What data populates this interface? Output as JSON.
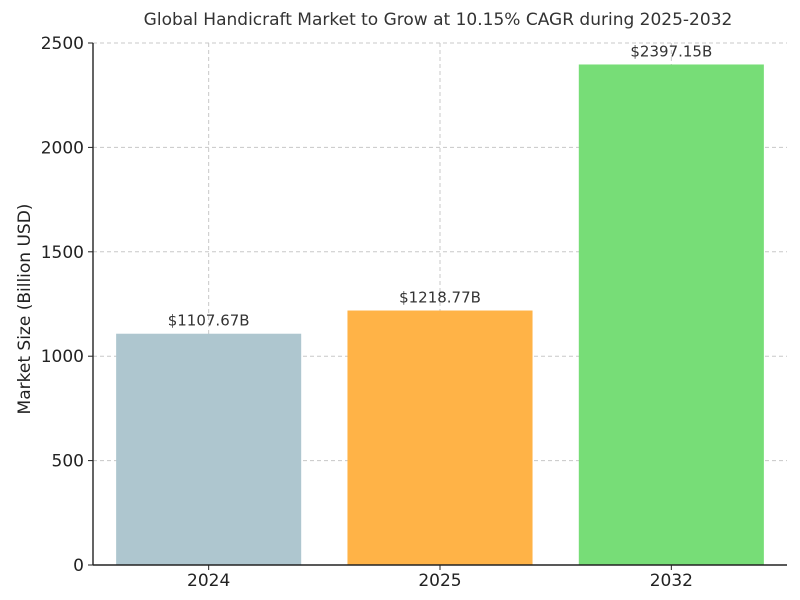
{
  "chart_data": {
    "type": "bar",
    "title": "Global Handicraft Market to Grow at 10.15% CAGR during 2025-2032",
    "xlabel": "",
    "ylabel": "Market Size (Billion USD)",
    "categories": [
      "2024",
      "2025",
      "2032"
    ],
    "values": [
      1107.67,
      1218.77,
      2397.15
    ],
    "data_labels": [
      "$1107.67B",
      "$1218.77B",
      "$2397.15B"
    ],
    "colors": [
      "#aec6cf",
      "#ffb347",
      "#77dd77"
    ],
    "ylim": [
      0,
      2500
    ],
    "yticks": [
      0,
      500,
      1000,
      1500,
      2000,
      2500
    ],
    "grid": true,
    "legend": "none"
  }
}
